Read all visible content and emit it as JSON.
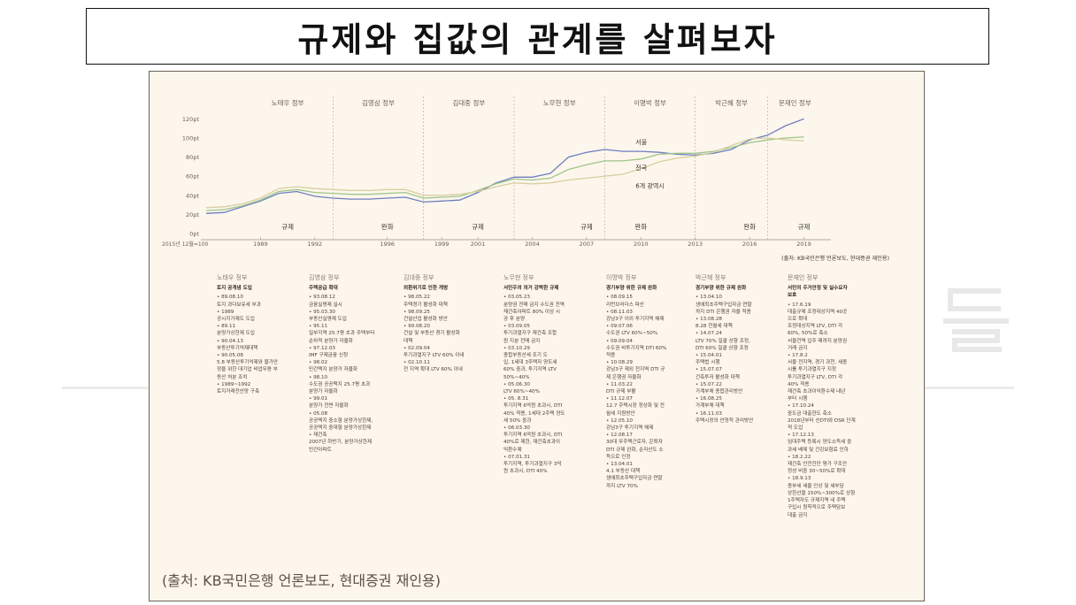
{
  "page": {
    "title": "규제와 집값의 관계를 살펴보자",
    "source_caption": "(출처: KB국민은행 언론보도, 현대증권 재인용)"
  },
  "chart_data": {
    "type": "line",
    "ylim": [
      0,
      125
    ],
    "y_ticks": [
      "0pt",
      "20pt",
      "40pt",
      "60pt",
      "80pt",
      "100pt",
      "120pt"
    ],
    "x_ticks": [
      "2015년 12월=100",
      "1989",
      "1992",
      "1996",
      "1999",
      "2001",
      "2004",
      "2007",
      "2010",
      "2013",
      "2016",
      "2019"
    ],
    "xlim": [
      1986,
      2020
    ],
    "governments": [
      {
        "name": "노태우 정부",
        "start": 1988,
        "end": 1993
      },
      {
        "name": "김영삼 정부",
        "start": 1993,
        "end": 1998
      },
      {
        "name": "김대중 정부",
        "start": 1998,
        "end": 2003
      },
      {
        "name": "노무현 정부",
        "start": 2003,
        "end": 2008
      },
      {
        "name": "이명박 정부",
        "start": 2008,
        "end": 2013
      },
      {
        "name": "박근혜 정부",
        "start": 2013,
        "end": 2017
      },
      {
        "name": "문재인 정부",
        "start": 2017,
        "end": 2020
      }
    ],
    "policy_labels": [
      {
        "text": "규제",
        "x": 1990.5
      },
      {
        "text": "완화",
        "x": 1996
      },
      {
        "text": "규제",
        "x": 2001
      },
      {
        "text": "규제",
        "x": 2007
      },
      {
        "text": "완화",
        "x": 2010
      },
      {
        "text": "완화",
        "x": 2016
      },
      {
        "text": "규제",
        "x": 2019
      }
    ],
    "series": [
      {
        "name": "서울",
        "color": "#6f7fc0",
        "x": [
          1986,
          1987,
          1988,
          1989,
          1990,
          1991,
          1992,
          1993,
          1994,
          1995,
          1996,
          1997,
          1998,
          1999,
          2000,
          2001,
          2002,
          2003,
          2004,
          2005,
          2006,
          2007,
          2008,
          2009,
          2010,
          2011,
          2012,
          2013,
          2014,
          2015,
          2016,
          2017,
          2018,
          2019
        ],
        "y": [
          21,
          22,
          28,
          34,
          42,
          44,
          39,
          37,
          36,
          36,
          37,
          38,
          33,
          34,
          35,
          43,
          53,
          59,
          59,
          63,
          80,
          85,
          88,
          86,
          86,
          85,
          83,
          82,
          84,
          88,
          98,
          103,
          113,
          120
        ]
      },
      {
        "name": "전국",
        "color": "#9ec58a",
        "x": [
          1986,
          1987,
          1988,
          1989,
          1990,
          1991,
          1992,
          1993,
          1994,
          1995,
          1996,
          1997,
          1998,
          1999,
          2000,
          2001,
          2002,
          2003,
          2004,
          2005,
          2006,
          2007,
          2008,
          2009,
          2010,
          2011,
          2012,
          2013,
          2014,
          2015,
          2016,
          2017,
          2018,
          2019
        ],
        "y": [
          24,
          25,
          29,
          35,
          44,
          46,
          43,
          42,
          41,
          41,
          42,
          43,
          37,
          38,
          39,
          45,
          52,
          57,
          56,
          58,
          67,
          72,
          76,
          76,
          78,
          83,
          84,
          84,
          86,
          90,
          95,
          98,
          100,
          101
        ]
      },
      {
        "name": "6개 광역시",
        "color": "#d8cfa0",
        "x": [
          1986,
          1987,
          1988,
          1989,
          1990,
          1991,
          1992,
          1993,
          1994,
          1995,
          1996,
          1997,
          1998,
          1999,
          2000,
          2001,
          2002,
          2003,
          2004,
          2005,
          2006,
          2007,
          2008,
          2009,
          2010,
          2011,
          2012,
          2013,
          2014,
          2015,
          2016,
          2017,
          2018,
          2019
        ],
        "y": [
          27,
          28,
          31,
          37,
          47,
          49,
          47,
          46,
          45,
          45,
          46,
          46,
          40,
          40,
          41,
          44,
          49,
          53,
          52,
          53,
          56,
          58,
          60,
          62,
          68,
          75,
          79,
          81,
          85,
          92,
          99,
          100,
          98,
          97
        ]
      }
    ],
    "series_labels": [
      {
        "series": "서울",
        "x": 2010
      },
      {
        "series": "전국",
        "x": 2010
      },
      {
        "series": "6개 광역시",
        "x": 2010
      }
    ],
    "source_note": "(출처: KB국민은행 언론보도, 현대증권 재인용)",
    "grid": false,
    "legend": "inline"
  },
  "policy_columns": [
    {
      "gov": "노태우 정부",
      "heading": "토지 공개념 도입",
      "items": "• 89.08.10\n토지 과다보유세 부과\n• 1989\n공시지가제도 도입\n• 89.11\n분양가상한제 도입\n• 90.04.13\n부동산투기억제대책\n• 90.05.08\n5.8 부동산투기억제와 물가안\n정을 위한 대기업 비업무용 부\n동산 처분 조치\n• 1989~1992\n토지거래전산망 구축"
    },
    {
      "gov": "김영삼 정부",
      "heading": "주택공급 확대",
      "items": "• 93.08.12\n금융실명제 실시\n• 95.03.30\n부동산실명제 도입\n• 95.11\n일부지역 25.7평 초과 주택부터\n순차적 분양가 자율화\n• 97.12.03\nIMF 구제금융 신청\n• 98.02\n민간택지 분양가 자율화\n• 98.10\n수도권 공공택지 25.7평 초과\n분양가 자율화\n• 99.01\n분양가 전면 자율화\n• 05.08\n공공택지 중소형 분양가상한제,\n공공택지 중대형 분양가상한제\n• 재건축\n2007년 하반기, 분양가상한제\n민간아파트"
    },
    {
      "gov": "김대중 정부",
      "heading": "외환위기로 인한 개방",
      "items": "• 98.05.22\n주택경기 활성화 대책\n• 98.09.25\n건설산업 활성화 방안\n• 99.08.20\n건설 및 부동산 경기 활성화\n대책\n• 02.09.04\n투기과열지구 LTV 60% 이내\n• 02.10.11\n전 지역 확대 LTV 60% 이내"
    },
    {
      "gov": "노무현 정부",
      "heading": "서민주의 의거 강력한 규제",
      "items": "• 03.05.23\n분양권 전매 금지 수도권 전역\n재건축아파트 80% 이상 시\n공 후 분양\n• 03.09.05\n투기과열지구 재건축 조합\n원 지분 전매 금지\n• 03.10.29\n종합부동산세 조기 도\n입, 1세대 3주택자 양도세\n60% 중과, 투기지역 LTV\n50%~40%\n• 05.06.30\nLTV 60%~40%\n• 05. 8.31\n투기지역 6억원 초과시, DTI\n40% 적용, 1세대 2주택 양도\n세 50% 중과\n• 06.03.30\n투기지역 6억원 초과시, DTI\n40%로 제한, 재건축초과이\n익환수제\n• 07.01.31\n투기지역, 투기과열지구 3억\n원 초과시, DTI 40%"
    },
    {
      "gov": "이명박 정부",
      "heading": "경기부양 위한 규제 완화",
      "items": "• 08.09.15\n리먼브러더스 파산\n• 08.11.03\n강남3구 이외 투기지역 해제\n• 09.07.06\n수도권 LTV 60%~50%\n• 09.09.04\n수도권 비투기지역 DTI 60%\n적용\n• 10.08.29\n강남3구 제외 전지역 DTI 규\n제 은행권 자율화\n• 11.03.22\nDTI 규제 부활\n• 11.12.07\n12.7 주택시장 정상화 및 전\n월세 지원방안\n• 12.05.10\n강남3구 투기지역 해제\n• 12.08.17\n30대 무주택근로자, 은퇴자\nDTI 규제 완화, 순자산도 소\n득으로 인정\n• 13.04.01\n4.1 부동산 대책\n생애최초주택구입자금 연말\n까지 LTV 70%"
    },
    {
      "gov": "박근혜 정부",
      "heading": "경기부양 위한 규제 완화",
      "items": "• 13.04.10\n생애최초주택구입자금 연말\n까지 DTI 은행권 자율 적용\n• 13.08.28\n8.28 전월세 대책\n• 14.07.24\nLTV 70% 일괄 상향 조정,\nDTI 60% 일괄 상향 조정\n• 15.04.01\n주택법 시행\n• 15.07.07\n건축투자 활성화 대책\n• 15.07.22\n가계부채 종합관리방안\n• 16.08.25\n가계부채 대책\n• 16.11.03\n주택시장의 안정적 관리방안"
    },
    {
      "gov": "문재인 정부",
      "heading": "서민의 주거안정 및 실수요자\n보호",
      "items": "• 17.6.19\n대출규제 조정대상지역 40곳\n으로 확대\n조정대상지역 LTV, DTI 각\n60%, 50%로 축소\n서울전역 입주 때까지 분양권\n거래 금지\n• 17.8.2\n서울 전지역, 경기 과천, 세종\n시를 투기과열지구 지정\n투기과열지구 LTV, DTI 각\n40% 적용\n재건축 초과이익환수제 내년\n부터 시행\n• 17.10.24\n중도금 대출한도 축소\n2018년부터 신DTI와 DSR 단계\n적 도입\n• 17.12.13\n임대주택 등록시 양도소득세 중\n과세 배제 및 건강보험료 인하\n• 18.2.22\n재건축 안전진단 평가 구조안\n정성 비중 30~50%로 확대\n• 18.9.13\n종부세 세율 인상 및 세부담\n상한선을 150%~300%로 상향\n1주택자도 규제지역 내 주택\n구입시 원칙적으로 주택담보\n대출 금지"
    }
  ]
}
